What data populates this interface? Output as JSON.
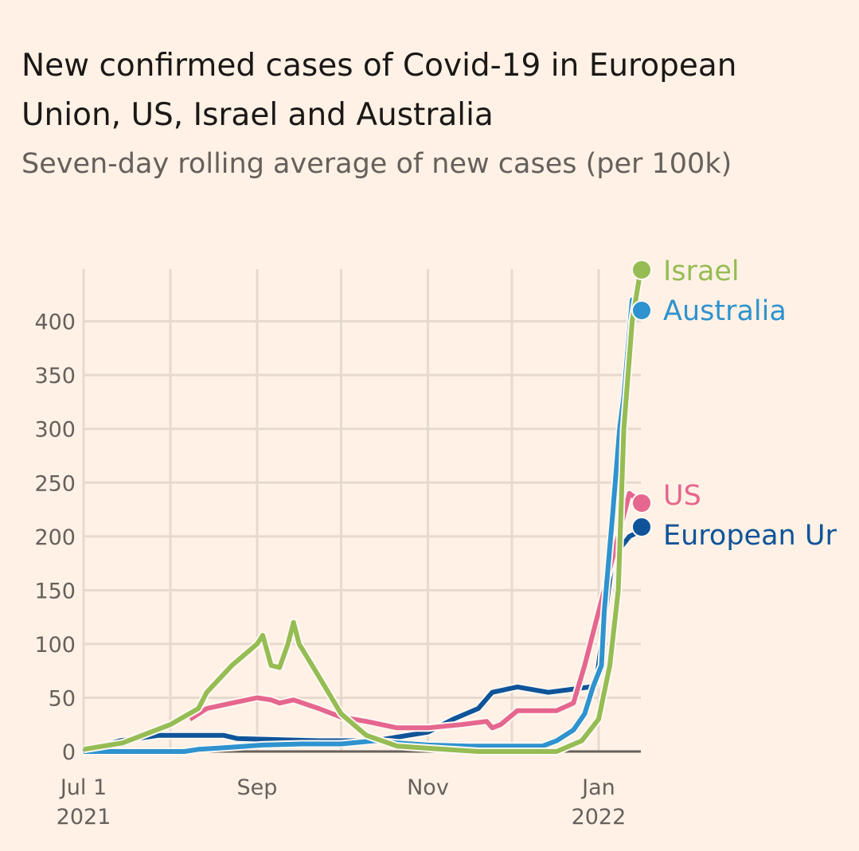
{
  "chart_data": {
    "type": "line",
    "title": "New confirmed cases of Covid-19 in European Union, US, Israel and Australia",
    "subtitle": "Seven-day rolling average of new cases (per 100k)",
    "x_unit": "days since Jul 1 2021",
    "xlim": [
      0,
      199
    ],
    "ylim": [
      0,
      448
    ],
    "grid": true,
    "x_ticks": [
      {
        "day": 0,
        "label": "Jul 1",
        "sub": "2021"
      },
      {
        "day": 62,
        "label": "Sep",
        "sub": ""
      },
      {
        "day": 123,
        "label": "Nov",
        "sub": ""
      },
      {
        "day": 184,
        "label": "Jan",
        "sub": "2022"
      }
    ],
    "x_grid_days": [
      0,
      31,
      62,
      92,
      123,
      153,
      184
    ],
    "y_ticks": [
      0,
      50,
      100,
      150,
      200,
      250,
      300,
      350,
      400
    ],
    "series": [
      {
        "name": "European Union",
        "label": "European Ur",
        "color": "#0f5499",
        "x": [
          0,
          13,
          27,
          50,
          55,
          84,
          104,
          123,
          132,
          141,
          146,
          155,
          166,
          175,
          181,
          183,
          186,
          189,
          195,
          199
        ],
        "y": [
          0,
          10,
          15,
          15,
          12,
          10,
          10,
          18,
          30,
          40,
          55,
          60,
          55,
          58,
          60,
          62,
          120,
          180,
          200,
          205
        ]
      },
      {
        "name": "US",
        "label": "US",
        "color": "#e5668e",
        "x": [
          38,
          44,
          53,
          62,
          67,
          70,
          75,
          84,
          92,
          101,
          112,
          123,
          135,
          144,
          146,
          149,
          155,
          169,
          175,
          179,
          183,
          186,
          191,
          195,
          199
        ],
        "y": [
          30,
          40,
          45,
          50,
          48,
          45,
          48,
          40,
          32,
          28,
          22,
          22,
          25,
          28,
          22,
          25,
          38,
          38,
          45,
          80,
          120,
          150,
          200,
          240,
          232
        ]
      },
      {
        "name": "Australia",
        "label": "Australia",
        "color": "#2e93cf",
        "x": [
          0,
          36,
          41,
          53,
          64,
          78,
          92,
          104,
          112,
          123,
          138,
          144,
          164,
          169,
          175,
          179,
          182,
          185,
          186,
          189,
          191.5,
          193,
          196,
          199
        ],
        "y": [
          0,
          0,
          2,
          4,
          6,
          7,
          7,
          10,
          8,
          6,
          5,
          5,
          5,
          10,
          20,
          35,
          60,
          80,
          130,
          220,
          300,
          330,
          420,
          410
        ]
      },
      {
        "name": "Israel",
        "label": "Israel",
        "color": "#96bc54",
        "x": [
          0,
          14,
          31,
          41,
          44,
          53,
          62,
          64,
          67,
          70,
          73,
          75,
          77,
          84,
          92,
          101,
          112,
          123,
          141,
          169,
          178,
          184,
          188,
          191,
          193,
          196,
          199
        ],
        "y": [
          2,
          8,
          25,
          40,
          55,
          80,
          100,
          108,
          80,
          78,
          100,
          120,
          100,
          70,
          35,
          15,
          5,
          3,
          0,
          0,
          10,
          30,
          80,
          150,
          300,
          400,
          448
        ]
      }
    ]
  }
}
